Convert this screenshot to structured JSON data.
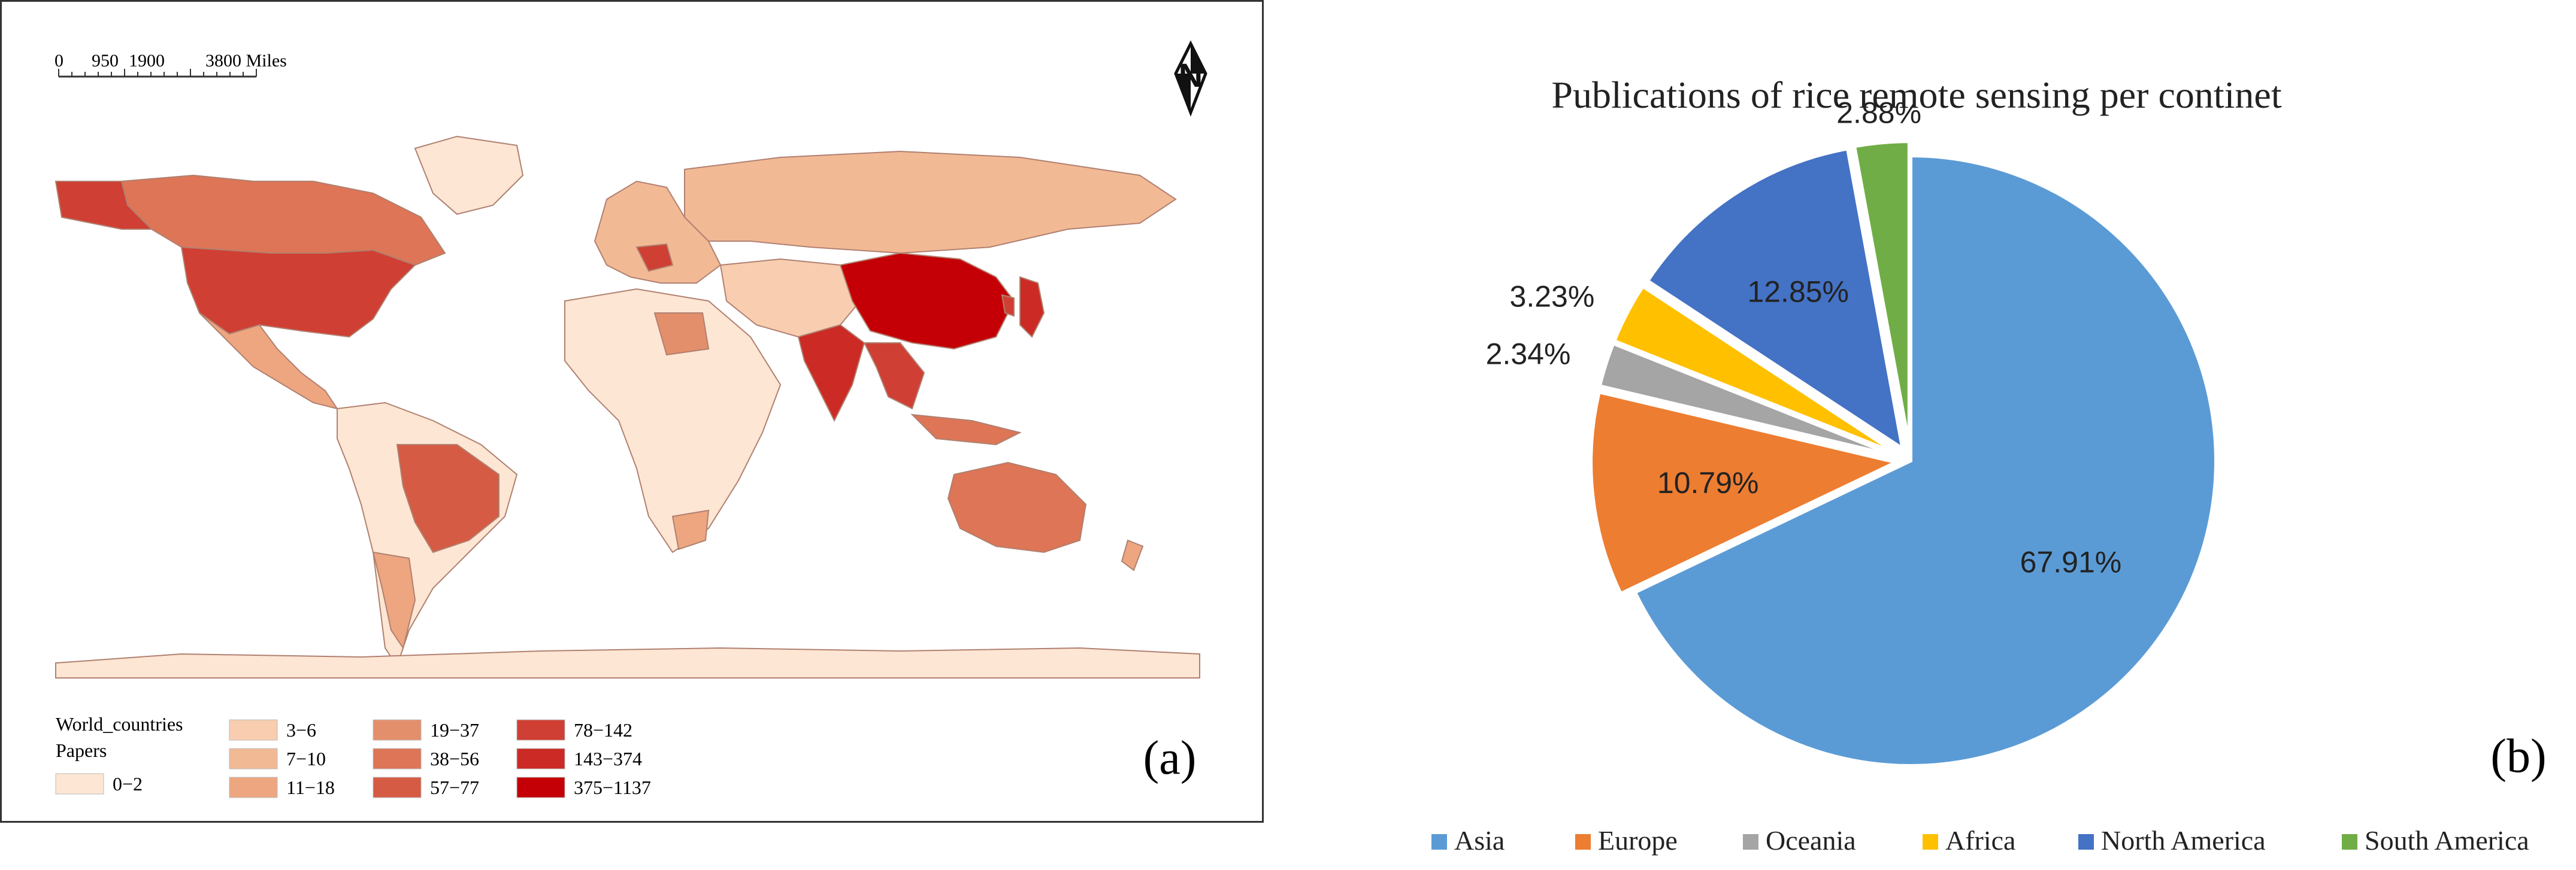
{
  "map": {
    "panel_label": "(a)",
    "scale_bar": {
      "ticks": [
        "0",
        "950",
        "1900",
        "3800 Miles"
      ]
    },
    "north_arrow_letter": "N",
    "legend": {
      "layer": "World_countries",
      "field": "Papers",
      "classes": [
        {
          "label": "0−2",
          "color": "#fde6d3"
        },
        {
          "label": "3−6",
          "color": "#f8cdb0"
        },
        {
          "label": "7−10",
          "color": "#f2b995"
        },
        {
          "label": "11−18",
          "color": "#eda680"
        },
        {
          "label": "19−37",
          "color": "#e48f6b"
        },
        {
          "label": "38−56",
          "color": "#dd7556"
        },
        {
          "label": "57−77",
          "color": "#d65b44"
        },
        {
          "label": "78−142",
          "color": "#d03f33"
        },
        {
          "label": "143−374",
          "color": "#cc2a24"
        },
        {
          "label": "375−1137",
          "color": "#c40006"
        }
      ]
    }
  },
  "chart_data": {
    "type": "pie",
    "title": "Publications of rice remote sensing per continet",
    "panel_label": "(b)",
    "legend_position": "bottom",
    "slices": [
      {
        "name": "Asia",
        "value": 67.91,
        "label": "67.91%",
        "color": "#5b9bd5"
      },
      {
        "name": "Europe",
        "value": 10.79,
        "label": "10.79%",
        "color": "#ed7d31"
      },
      {
        "name": "Oceania",
        "value": 2.34,
        "label": "2.34%",
        "color": "#a5a5a5"
      },
      {
        "name": "Africa",
        "value": 3.23,
        "label": "3.23%",
        "color": "#ffc000"
      },
      {
        "name": "North America",
        "value": 12.85,
        "label": "12.85%",
        "color": "#4472c4"
      },
      {
        "name": "South America",
        "value": 2.88,
        "label": "2.88%",
        "color": "#70ad47"
      }
    ]
  }
}
